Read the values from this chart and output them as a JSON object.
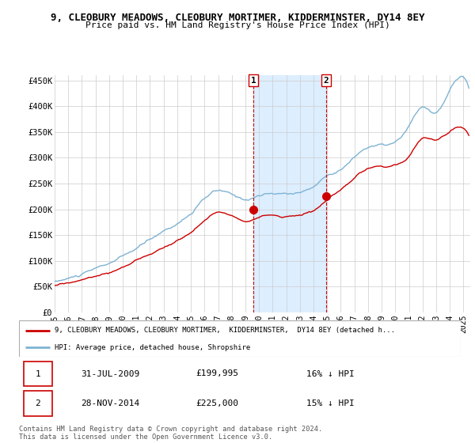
{
  "title": "9, CLEOBURY MEADOWS, CLEOBURY MORTIMER, KIDDERMINSTER, DY14 8EY",
  "subtitle": "Price paid vs. HM Land Registry's House Price Index (HPI)",
  "ylabel_ticks": [
    "£0",
    "£50K",
    "£100K",
    "£150K",
    "£200K",
    "£250K",
    "£300K",
    "£350K",
    "£400K",
    "£450K"
  ],
  "ylabel_vals": [
    0,
    50000,
    100000,
    150000,
    200000,
    250000,
    300000,
    350000,
    400000,
    450000
  ],
  "ylim": [
    0,
    460000
  ],
  "xlim_start": 1995.0,
  "xlim_end": 2025.5,
  "background_color": "#ffffff",
  "grid_color": "#cccccc",
  "hpi_color": "#7fb3d3",
  "price_color": "#cc0000",
  "purchase1_year": 2009.58,
  "purchase1_price": 199995,
  "purchase2_year": 2014.92,
  "purchase2_price": 225000,
  "legend_line1": "9, CLEOBURY MEADOWS, CLEOBURY MORTIMER,  KIDDERMINSTER,  DY14 8EY (detached h...",
  "legend_line2": "HPI: Average price, detached house, Shropshire",
  "table_row1": [
    "1",
    "31-JUL-2009",
    "£199,995",
    "16% ↓ HPI"
  ],
  "table_row2": [
    "2",
    "28-NOV-2014",
    "£225,000",
    "15% ↓ HPI"
  ],
  "footer": "Contains HM Land Registry data © Crown copyright and database right 2024.\nThis data is licensed under the Open Government Licence v3.0.",
  "highlight_color": "#ddeeff",
  "vline_color": "#cc0000",
  "xtick_years": [
    1995,
    1996,
    1997,
    1998,
    1999,
    2000,
    2001,
    2002,
    2003,
    2004,
    2005,
    2006,
    2007,
    2008,
    2009,
    2010,
    2011,
    2012,
    2013,
    2014,
    2015,
    2016,
    2017,
    2018,
    2019,
    2020,
    2021,
    2022,
    2023,
    2024,
    2025
  ]
}
